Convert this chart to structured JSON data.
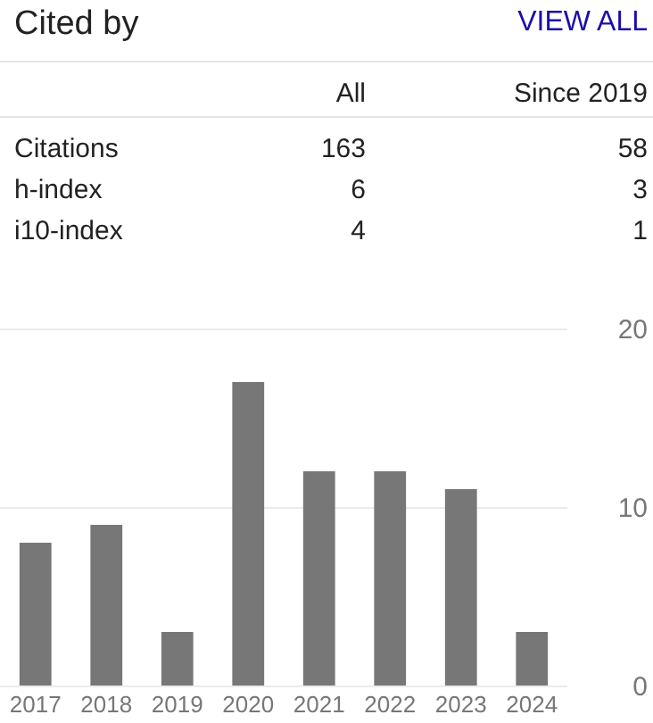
{
  "chart_data": [
    {
      "type": "heatmap",
      "title": "Cited by",
      "annotations": [
        "VIEW ALL"
      ],
      "categories": [
        "All",
        "Since 2019"
      ],
      "y_categories": [
        "Citations",
        "h-index",
        "i10-index"
      ],
      "cells": [
        [
          163,
          58
        ],
        [
          6,
          3
        ],
        [
          4,
          1
        ]
      ],
      "data_labels": true
    },
    {
      "type": "bar",
      "categories": [
        "2017",
        "2018",
        "2019",
        "2020",
        "2021",
        "2022",
        "2023",
        "2024"
      ],
      "values": [
        8,
        9,
        3,
        17,
        12,
        12,
        11,
        3
      ],
      "color": "#777777",
      "ylim": [
        0,
        20
      ],
      "yticks": [
        0,
        10,
        20
      ],
      "grid": "y"
    }
  ]
}
